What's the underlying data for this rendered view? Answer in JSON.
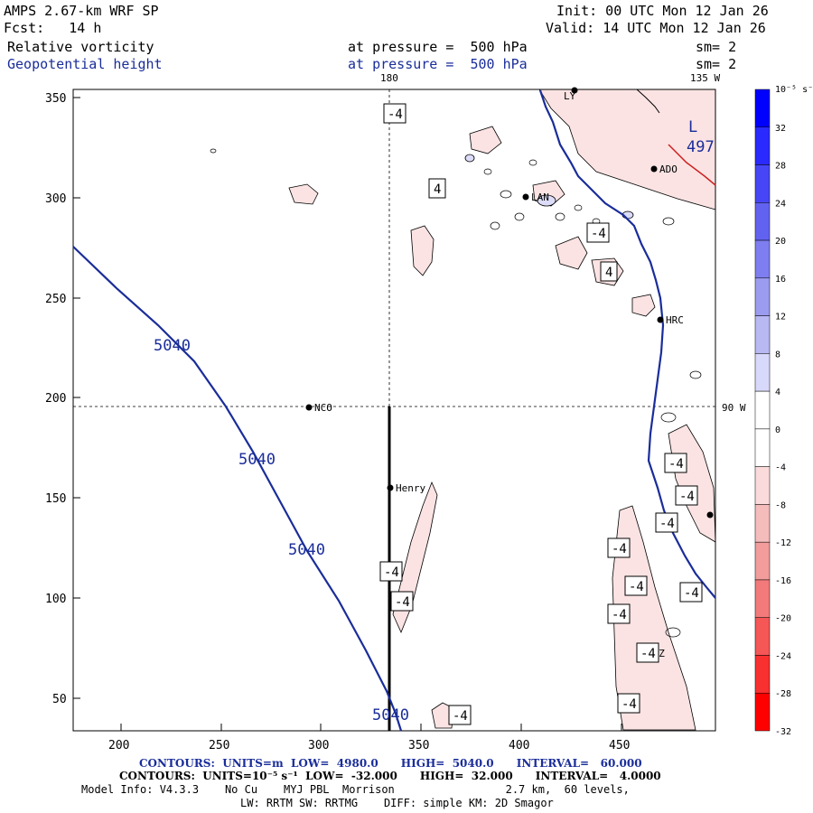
{
  "header": {
    "model": "AMPS 2.67-km WRF SP",
    "forecast": "Fcst:   14 h",
    "init": "Init: 00 UTC Mon 12 Jan 26",
    "valid": "Valid: 14 UTC Mon 12 Jan 26"
  },
  "fields": [
    {
      "name": "Relative vorticity",
      "level": "at pressure =  500 hPa",
      "smooth": "sm= 2"
    },
    {
      "name": "Geopotential height",
      "level": "at pressure =  500 hPa",
      "smooth": "sm= 2"
    }
  ],
  "axes": {
    "x_ticks": [
      "200",
      "250",
      "300",
      "350",
      "400",
      "450"
    ],
    "y_ticks": [
      "350",
      "300",
      "250",
      "200",
      "150",
      "100",
      "50"
    ],
    "lon_top_180": "180",
    "lon_top_135w": "135 W",
    "lon_right_90w": "90 W"
  },
  "stations": [
    {
      "name": "NCO"
    },
    {
      "name": "Henry"
    },
    {
      "name": "HRC"
    },
    {
      "name": "ADO"
    },
    {
      "name": "LAN"
    },
    {
      "name": "AGZ"
    },
    {
      "name": "LY"
    }
  ],
  "height_contour_labels": [
    "5040",
    "5040",
    "5040",
    "5040",
    "497"
  ],
  "low_marker": "L",
  "vorticity_labels": [
    "-4",
    "4",
    "-4",
    "4",
    "-4",
    "-4",
    "-4",
    "-4",
    "-4",
    "-4",
    "-4",
    "-4",
    "-4",
    "-4",
    "-4",
    "-4",
    "-4"
  ],
  "colorbar": {
    "units": "10⁻⁵ s⁻¹",
    "ticks": [
      "32",
      "28",
      "24",
      "20",
      "16",
      "12",
      "8",
      "4",
      "0",
      "-4",
      "-8",
      "-12",
      "-16",
      "-20",
      "-24",
      "-28",
      "-32"
    ],
    "colors": [
      "#0000ff",
      "#2a2aff",
      "#4646f6",
      "#6262f0",
      "#7e7ef0",
      "#9b9bf0",
      "#b8b8f3",
      "#d8d8fa",
      "#ffffff",
      "#ffffff",
      "#fadada",
      "#f5bcbc",
      "#f29c9c",
      "#f27a7a",
      "#f55656",
      "#f83030",
      "#ff0000"
    ]
  },
  "footer": {
    "height_contours": "CONTOURS:  UNITS=m  LOW=  4980.0      HIGH=  5040.0      INTERVAL=   60.000",
    "vort_contours": "CONTOURS:  UNITS=10⁻⁵ s⁻¹  LOW=  -32.000      HIGH=  32.000      INTERVAL=   4.0000",
    "model_info": "Model Info: V4.3.3    No Cu    MYJ PBL  Morrison                 2.7 km,  60 levels,",
    "physics": "LW: RRTM SW: RRTMG    DIFF: simple KM: 2D Smagor"
  }
}
